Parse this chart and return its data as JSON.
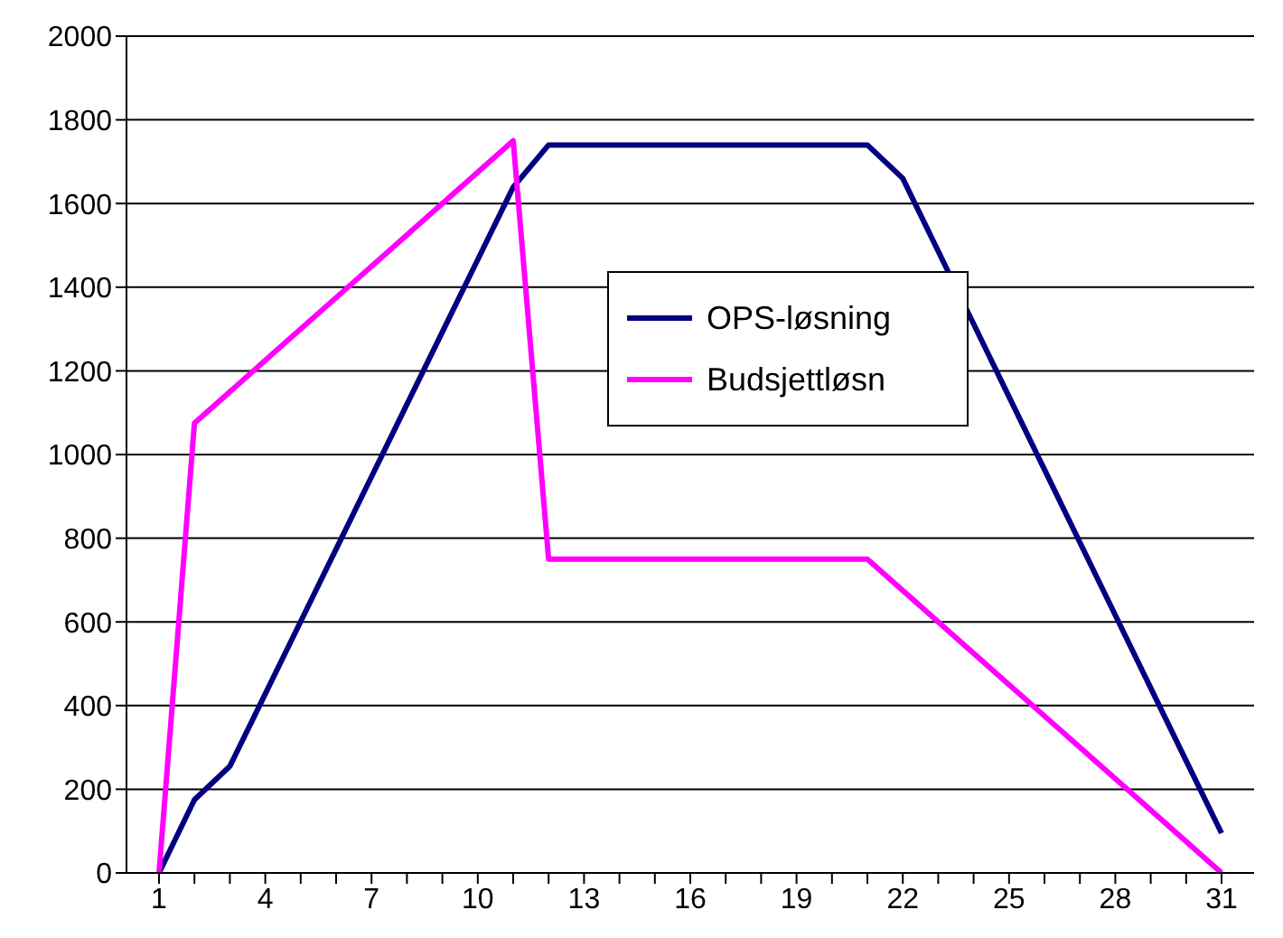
{
  "chart_data": {
    "type": "line",
    "categories": [
      "1",
      null,
      null,
      "4",
      null,
      null,
      "7",
      null,
      null,
      "10",
      null,
      null,
      "13",
      null,
      null,
      "16",
      null,
      null,
      "19",
      null,
      null,
      "22",
      null,
      null,
      "25",
      null,
      null,
      "28",
      null,
      null,
      "31"
    ],
    "series": [
      {
        "name": "OPS-løsning",
        "color": "#000080",
        "values": [
          0,
          175,
          255,
          428,
          601,
          774,
          947,
          1120,
          1293,
          1466,
          1639,
          1740,
          1740,
          1740,
          1740,
          1740,
          1740,
          1740,
          1740,
          1740,
          1740,
          1660,
          1486,
          1312,
          1138,
          964,
          790,
          616,
          442,
          268,
          95
        ]
      },
      {
        "name": "Budsjettløsn",
        "color": "#ff00ff",
        "values": [
          0,
          1075,
          1150,
          1225,
          1300,
          1375,
          1450,
          1525,
          1600,
          1675,
          1750,
          750,
          750,
          750,
          750,
          750,
          750,
          750,
          750,
          750,
          750,
          675,
          600,
          525,
          450,
          375,
          300,
          225,
          150,
          75,
          0
        ]
      }
    ],
    "ylim": [
      0,
      2000
    ],
    "yticks": [
      0,
      200,
      400,
      600,
      800,
      1000,
      1200,
      1400,
      1600,
      1800,
      2000
    ],
    "grid": "y",
    "legend": "center",
    "marker": "none",
    "line_style": "solid"
  }
}
